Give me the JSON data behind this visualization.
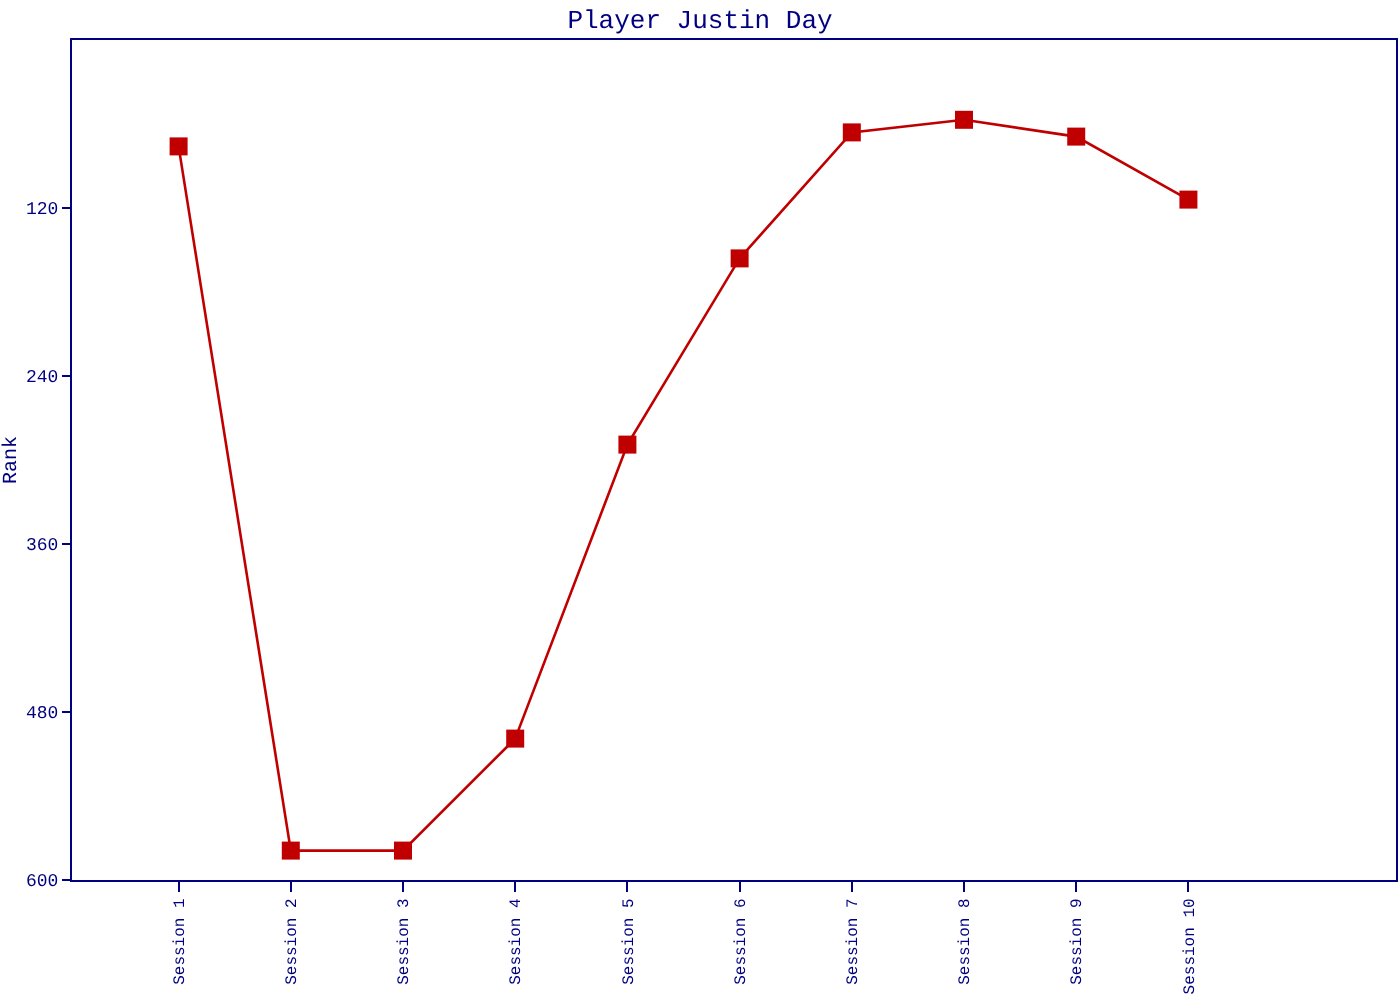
{
  "chart_data": {
    "type": "line",
    "title": "Player Justin Day",
    "ylabel": "Rank",
    "categories": [
      "Session 1",
      "Session 2",
      "Session 3",
      "Session 4",
      "Session 5",
      "Session 6",
      "Session 7",
      "Session 8",
      "Session 9",
      "Session 10"
    ],
    "series": [
      {
        "color": "#c00000",
        "values": [
          76,
          579,
          579,
          499,
          289,
          156,
          66,
          57,
          69,
          114
        ]
      }
    ],
    "ylim": [
      600,
      0
    ],
    "yticks": [
      120,
      240,
      360,
      480,
      600
    ],
    "marker": "square",
    "line_style": "solid"
  }
}
